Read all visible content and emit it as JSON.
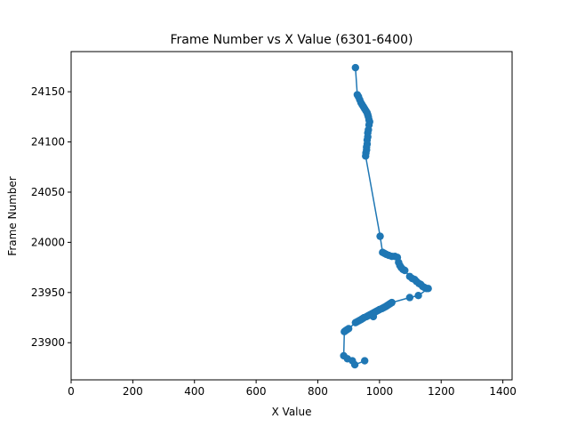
{
  "chart_data": {
    "type": "line",
    "title": "Frame Number vs X Value (6301-6400)",
    "xlabel": "X Value",
    "ylabel": "Frame Number",
    "xlim": [
      0,
      1430
    ],
    "ylim": [
      23863,
      24190
    ],
    "xticks": [
      0,
      200,
      400,
      600,
      800,
      1000,
      1200,
      1400
    ],
    "yticks": [
      23900,
      23950,
      24000,
      24050,
      24100,
      24150
    ],
    "grid": false,
    "marker": "circle",
    "color": "#1f77b4",
    "series": [
      {
        "points": [
          [
            922,
            24174
          ],
          [
            928,
            24147
          ],
          [
            932,
            24145
          ],
          [
            936,
            24142
          ],
          [
            940,
            24139
          ],
          [
            944,
            24137
          ],
          [
            948,
            24135
          ],
          [
            952,
            24133
          ],
          [
            956,
            24131
          ],
          [
            960,
            24129
          ],
          [
            962,
            24127
          ],
          [
            964,
            24125
          ],
          [
            966,
            24122
          ],
          [
            968,
            24120
          ],
          [
            966,
            24117
          ],
          [
            964,
            24112
          ],
          [
            962,
            24109
          ],
          [
            962,
            24105
          ],
          [
            960,
            24102
          ],
          [
            960,
            24098
          ],
          [
            958,
            24095
          ],
          [
            958,
            24092
          ],
          [
            956,
            24089
          ],
          [
            955,
            24086
          ],
          [
            1002,
            24006
          ],
          [
            1010,
            23990
          ],
          [
            1016,
            23989
          ],
          [
            1022,
            23988
          ],
          [
            1030,
            23987
          ],
          [
            1040,
            23986
          ],
          [
            1050,
            23986
          ],
          [
            1058,
            23985
          ],
          [
            1062,
            23980
          ],
          [
            1066,
            23977
          ],
          [
            1070,
            23975
          ],
          [
            1076,
            23973
          ],
          [
            1082,
            23972
          ],
          [
            1098,
            23966
          ],
          [
            1106,
            23964
          ],
          [
            1114,
            23963
          ],
          [
            1120,
            23961
          ],
          [
            1128,
            23959
          ],
          [
            1134,
            23958
          ],
          [
            1140,
            23956
          ],
          [
            1146,
            23955
          ],
          [
            1152,
            23954
          ],
          [
            1158,
            23954
          ],
          [
            1126,
            23947
          ],
          [
            1098,
            23945
          ],
          [
            1040,
            23940
          ],
          [
            1035,
            23939
          ],
          [
            1030,
            23938
          ],
          [
            1025,
            23937
          ],
          [
            1020,
            23936
          ],
          [
            1014,
            23935
          ],
          [
            1008,
            23934
          ],
          [
            1000,
            23933
          ],
          [
            994,
            23932
          ],
          [
            988,
            23931
          ],
          [
            982,
            23930
          ],
          [
            976,
            23929
          ],
          [
            970,
            23928
          ],
          [
            964,
            23927
          ],
          [
            958,
            23926
          ],
          [
            980,
            23926
          ],
          [
            950,
            23925
          ],
          [
            945,
            23924
          ],
          [
            940,
            23923
          ],
          [
            934,
            23922
          ],
          [
            928,
            23921
          ],
          [
            922,
            23920
          ],
          [
            900,
            23914
          ],
          [
            895,
            23913
          ],
          [
            890,
            23912
          ],
          [
            886,
            23911
          ],
          [
            884,
            23887
          ],
          [
            896,
            23884
          ],
          [
            912,
            23882
          ],
          [
            920,
            23878
          ],
          [
            952,
            23882
          ]
        ]
      }
    ]
  }
}
